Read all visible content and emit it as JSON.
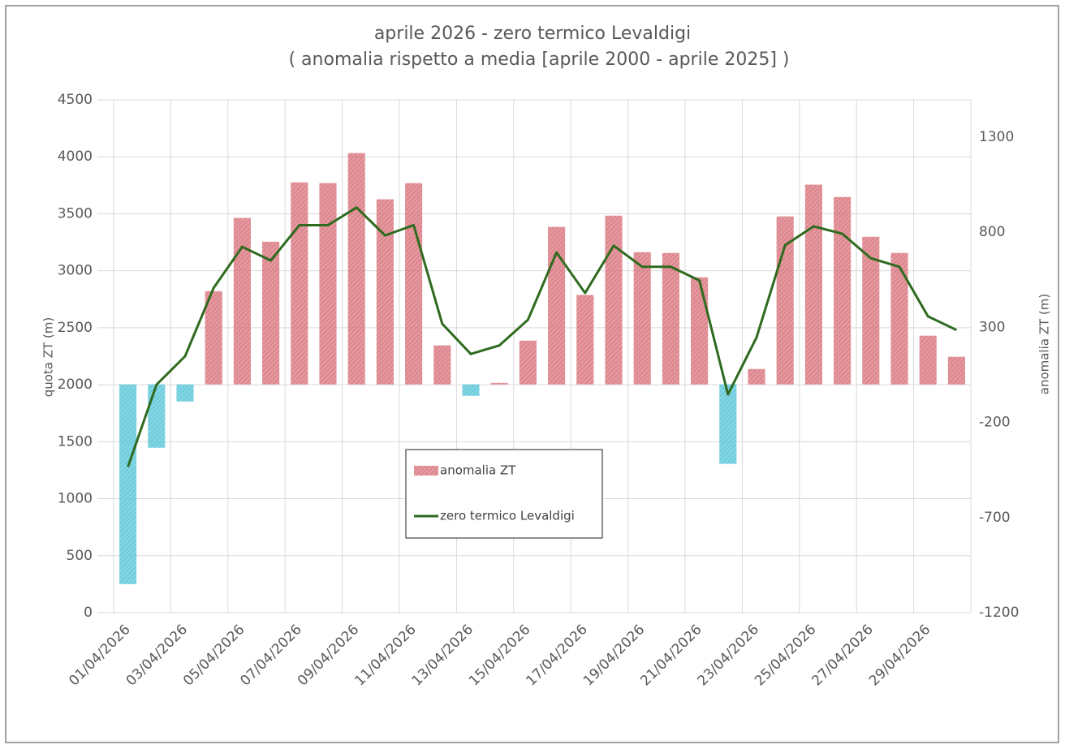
{
  "chart_data": {
    "type": "bar_line",
    "title": "aprile 2026 - zero termico Levaldigi",
    "subtitle": "( anomalia rispetto a media [aprile 2000 - aprile 2025] )",
    "ylabel": "quota ZT (m)",
    "y2label": "anomalia ZT (m)",
    "categories": [
      "01/04/2026",
      null,
      "03/04/2026",
      null,
      "05/04/2026",
      null,
      "07/04/2026",
      null,
      "09/04/2026",
      null,
      "11/04/2026",
      null,
      "13/04/2026",
      null,
      "15/04/2026",
      null,
      "17/04/2026",
      null,
      "19/04/2026",
      null,
      "21/04/2026",
      null,
      "23/04/2026",
      null,
      "25/04/2026",
      null,
      "27/04/2026",
      null,
      "29/04/2026",
      null
    ],
    "series": [
      {
        "name": "anomalia ZT",
        "type": "bar",
        "axis": "y2",
        "color": "#d9777f",
        "negative_color": "#5cc6d8",
        "values": [
          -1050,
          -333,
          -90,
          490,
          875,
          750,
          1062,
          1058,
          1216,
          973,
          1058,
          205,
          -60,
          8,
          230,
          828,
          470,
          887,
          695,
          691,
          563,
          -418,
          81,
          883,
          1050,
          985,
          776,
          691,
          256,
          145
        ]
      },
      {
        "name": "zero termico Levaldigi",
        "type": "line",
        "color": "#2e6b1f",
        "values": [
          1280,
          2000,
          2250,
          2850,
          3210,
          3090,
          3400,
          3400,
          3555,
          3310,
          3400,
          2535,
          2270,
          2345,
          2570,
          3160,
          2805,
          3220,
          3035,
          3035,
          2915,
          1915,
          2415,
          3225,
          3390,
          3325,
          3110,
          3035,
          2600,
          2480
        ]
      }
    ],
    "ylim": [
      0,
      4500
    ],
    "yticks": [
      0,
      500,
      1000,
      1500,
      2000,
      2500,
      3000,
      3500,
      4000,
      4500
    ],
    "y2lim": [
      -1200,
      1496
    ],
    "y2ticks": [
      -1200,
      -700,
      -200,
      300,
      800,
      1300
    ],
    "grid": true
  }
}
